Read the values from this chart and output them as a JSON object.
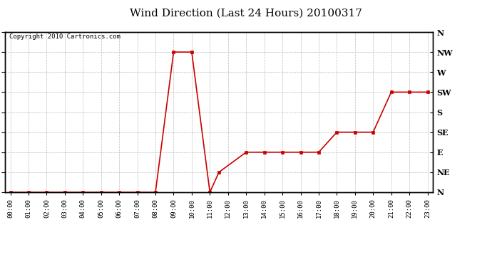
{
  "title": "Wind Direction (Last 24 Hours) 20100317",
  "copyright": "Copyright 2010 Cartronics.com",
  "line_color": "#cc0000",
  "marker": "s",
  "marker_size": 3,
  "background_color": "#ffffff",
  "grid_color": "#bbbbbb",
  "ytick_labels": [
    "N",
    "NE",
    "E",
    "SE",
    "S",
    "SW",
    "W",
    "NW",
    "N"
  ],
  "ytick_values": [
    0,
    45,
    90,
    135,
    180,
    225,
    270,
    315,
    360
  ],
  "hours": [
    0,
    1,
    2,
    3,
    4,
    5,
    6,
    7,
    8,
    9,
    10,
    11,
    11.5,
    13,
    14,
    15,
    16,
    17,
    18,
    19,
    20,
    21,
    22,
    23
  ],
  "directions": [
    0,
    0,
    0,
    0,
    0,
    0,
    0,
    0,
    0,
    315,
    315,
    0,
    45,
    90,
    90,
    90,
    90,
    90,
    135,
    135,
    135,
    225,
    225,
    225
  ],
  "ylim": [
    0,
    360
  ],
  "xtick_hours": [
    0,
    1,
    2,
    3,
    4,
    5,
    6,
    7,
    8,
    9,
    10,
    11,
    12,
    13,
    14,
    15,
    16,
    17,
    18,
    19,
    20,
    21,
    22,
    23
  ],
  "xtick_labels": [
    "00:00",
    "01:00",
    "02:00",
    "03:00",
    "04:00",
    "05:00",
    "06:00",
    "07:00",
    "08:00",
    "09:00",
    "10:00",
    "11:00",
    "12:00",
    "13:00",
    "14:00",
    "15:00",
    "16:00",
    "17:00",
    "18:00",
    "19:00",
    "20:00",
    "21:00",
    "22:00",
    "23:00"
  ],
  "title_fontsize": 11,
  "copyright_fontsize": 6.5,
  "ytick_fontsize": 8,
  "xtick_fontsize": 6.5
}
